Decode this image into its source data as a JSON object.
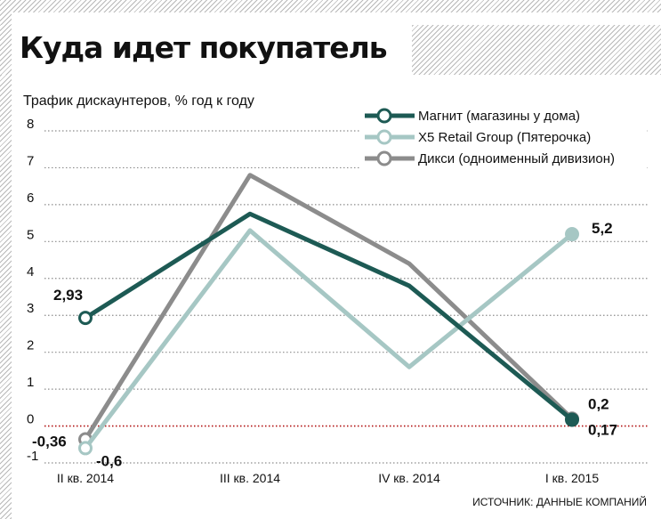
{
  "title": "Куда идет покупатель",
  "source": "ИСТОЧНИК: ДАННЫЕ КОМПАНИЙ",
  "colors": {
    "magnit": "#1d5a54",
    "x5": "#a6c7c4",
    "diksi": "#8c8c8c",
    "grid": "#8c8c8c",
    "zero_line": "#b01010",
    "text": "#111111"
  },
  "chart_data": {
    "type": "line",
    "title": "Куда идет покупатель",
    "ylabel": "Трафик дискаунтеров, % год к году",
    "xlabel": "",
    "categories": [
      "II кв. 2014",
      "III кв. 2014",
      "IV кв. 2014",
      "I кв. 2015"
    ],
    "ylim": [
      -1,
      8
    ],
    "yticks": [
      8,
      7,
      6,
      5,
      4,
      3,
      2,
      1,
      0,
      -1
    ],
    "grid": true,
    "legend": "top-right",
    "series": [
      {
        "key": "diksi",
        "name": "Дикси (одноименный дивизион)",
        "values": [
          -0.36,
          6.8,
          4.4,
          0.2
        ]
      },
      {
        "key": "x5",
        "name": "X5 Retail Group (Пятерочка)",
        "values": [
          -0.6,
          5.3,
          1.6,
          5.2
        ]
      },
      {
        "key": "magnit",
        "name": "Магнит (магазины у дома)",
        "values": [
          2.93,
          5.75,
          3.8,
          0.17
        ]
      }
    ],
    "legend_order": [
      "magnit",
      "x5",
      "diksi"
    ],
    "annotations": [
      {
        "series": "magnit",
        "index": 0,
        "text": "2,93"
      },
      {
        "series": "diksi",
        "index": 0,
        "text": "-0,36"
      },
      {
        "series": "x5",
        "index": 0,
        "text": "-0,6"
      },
      {
        "series": "x5",
        "index": 3,
        "text": "5,2"
      },
      {
        "series": "diksi",
        "index": 3,
        "text": "0,2"
      },
      {
        "series": "magnit",
        "index": 3,
        "text": "0,17"
      }
    ]
  }
}
